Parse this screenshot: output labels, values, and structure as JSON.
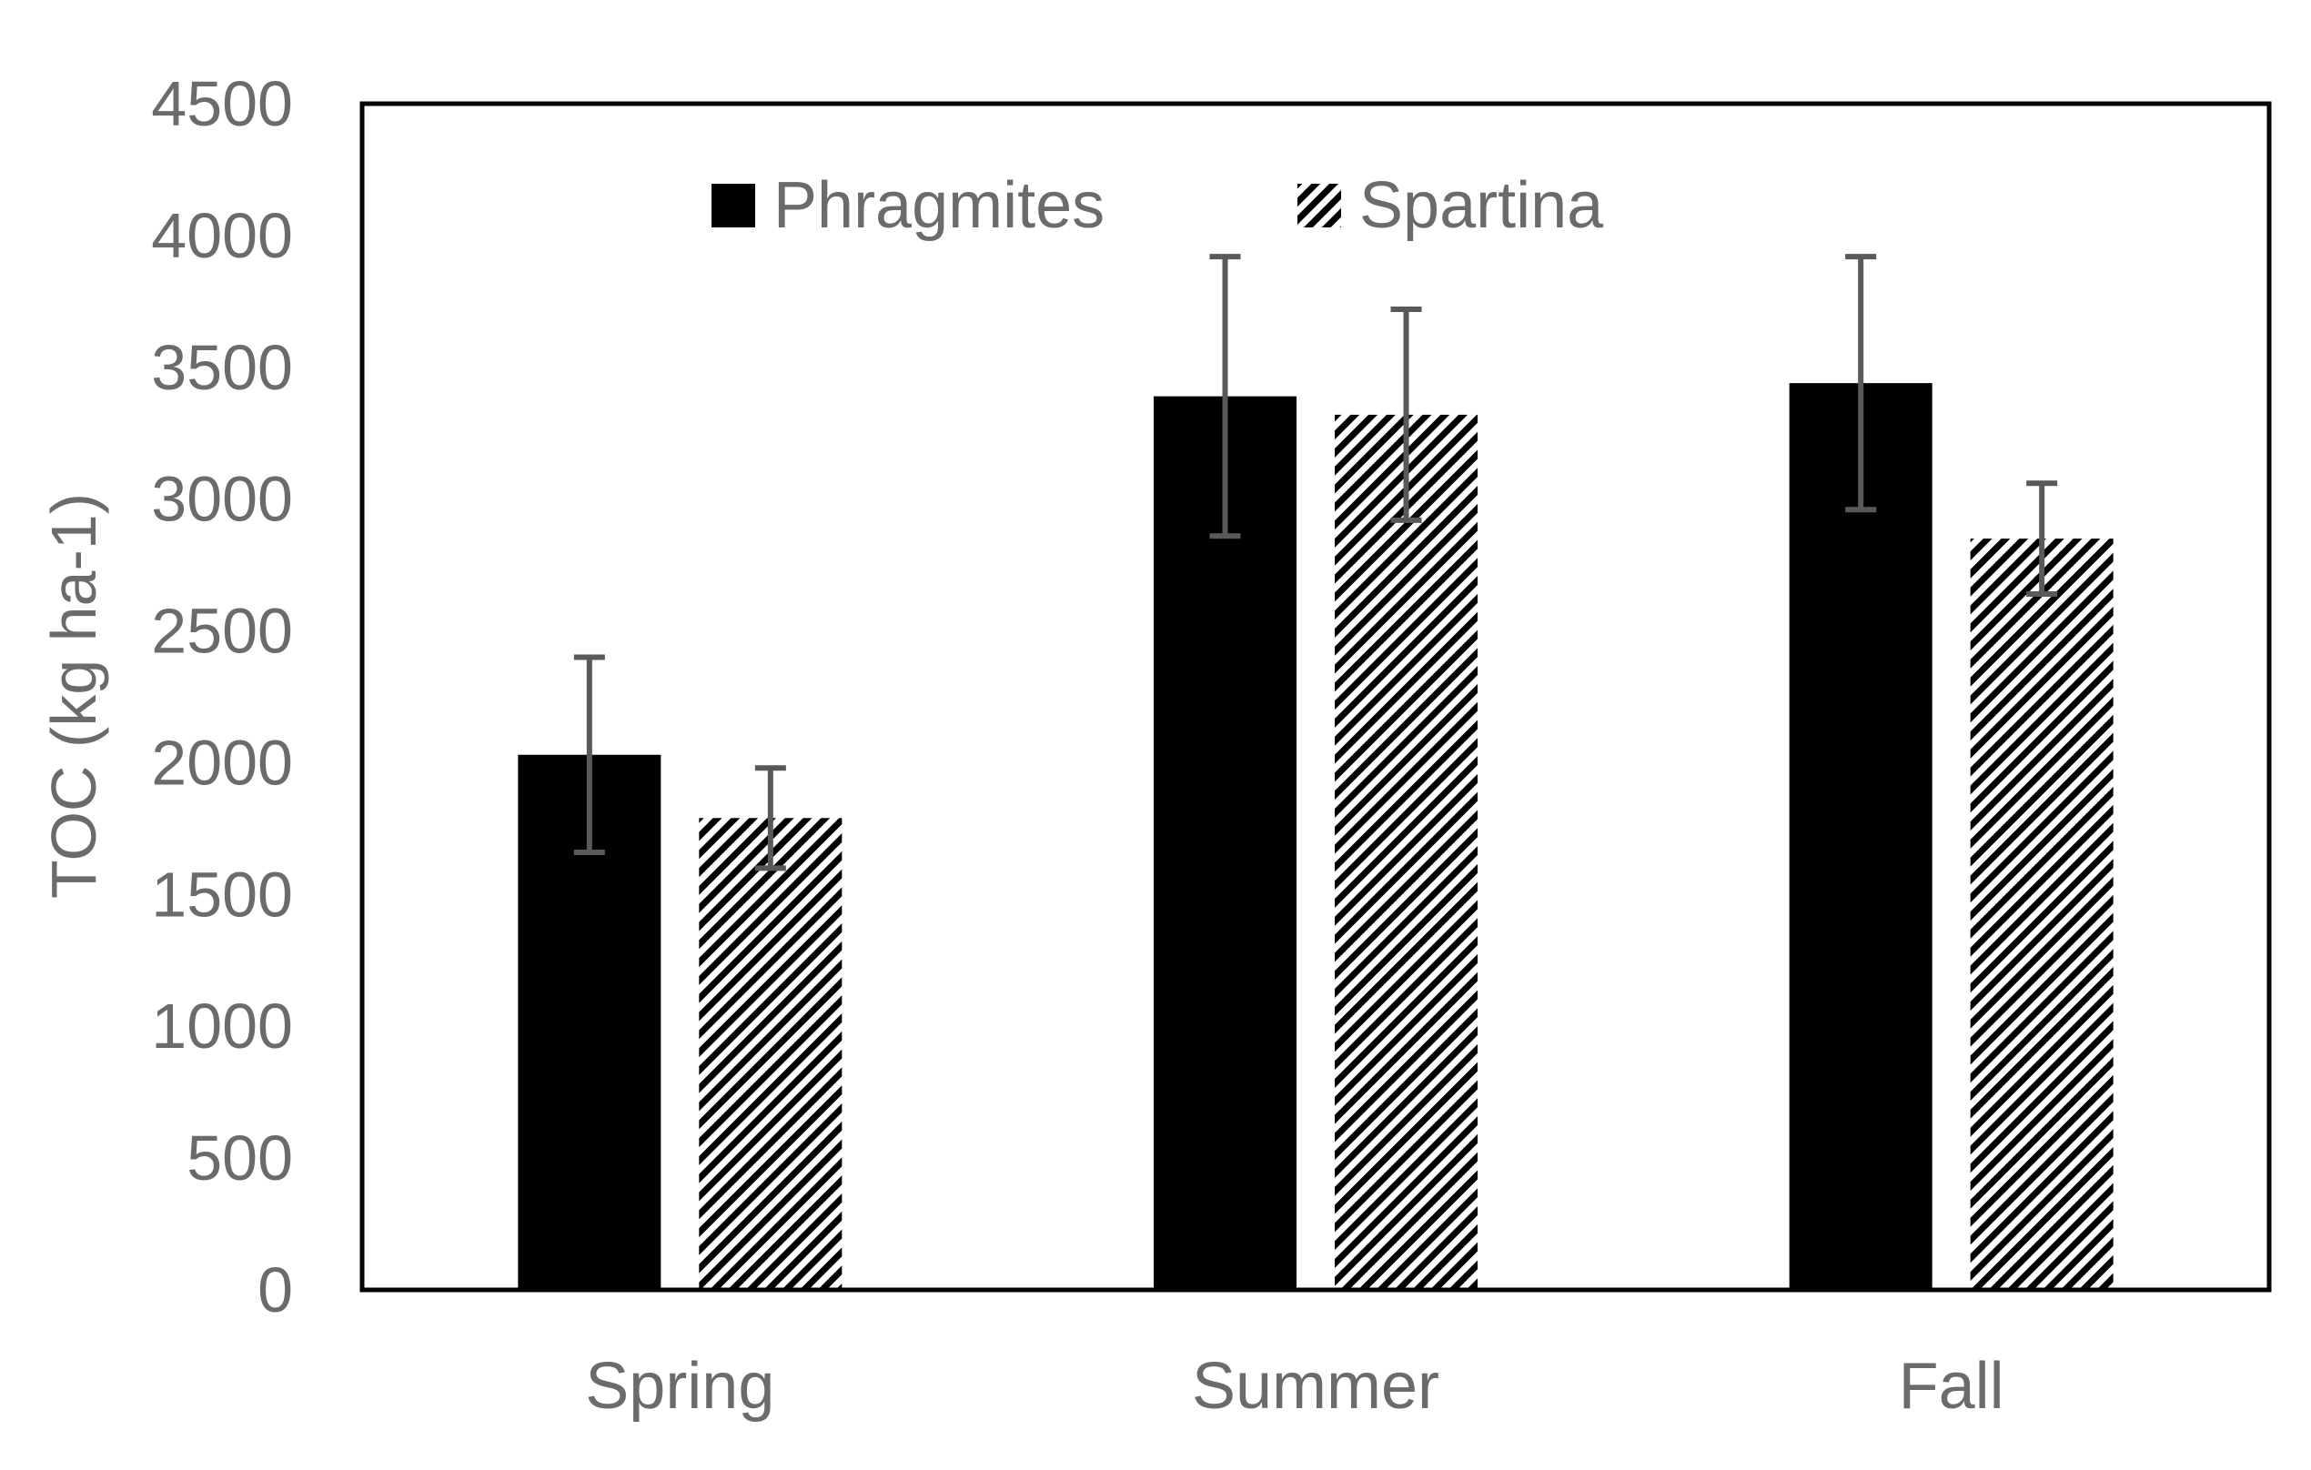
{
  "chart_data": {
    "type": "bar",
    "title": "",
    "xlabel": "",
    "ylabel": "TOC (kg ha-1)",
    "categories": [
      "Spring",
      "Summer",
      "Fall"
    ],
    "ylim": [
      0,
      4500
    ],
    "yticks": [
      0,
      500,
      1000,
      1500,
      2000,
      2500,
      3000,
      3500,
      4000,
      4500
    ],
    "grid": false,
    "legend_position": "top",
    "series": [
      {
        "name": "Phragmites",
        "fill": "solid",
        "color": "#000000",
        "values": [
          2030,
          3390,
          3440
        ],
        "errors": [
          370,
          530,
          480
        ]
      },
      {
        "name": "Spartina",
        "fill": "diagonal-hatch",
        "color": "#000000",
        "values": [
          1790,
          3320,
          2850
        ],
        "errors": [
          190,
          400,
          210
        ]
      }
    ],
    "error_bar_color": "#595959"
  }
}
